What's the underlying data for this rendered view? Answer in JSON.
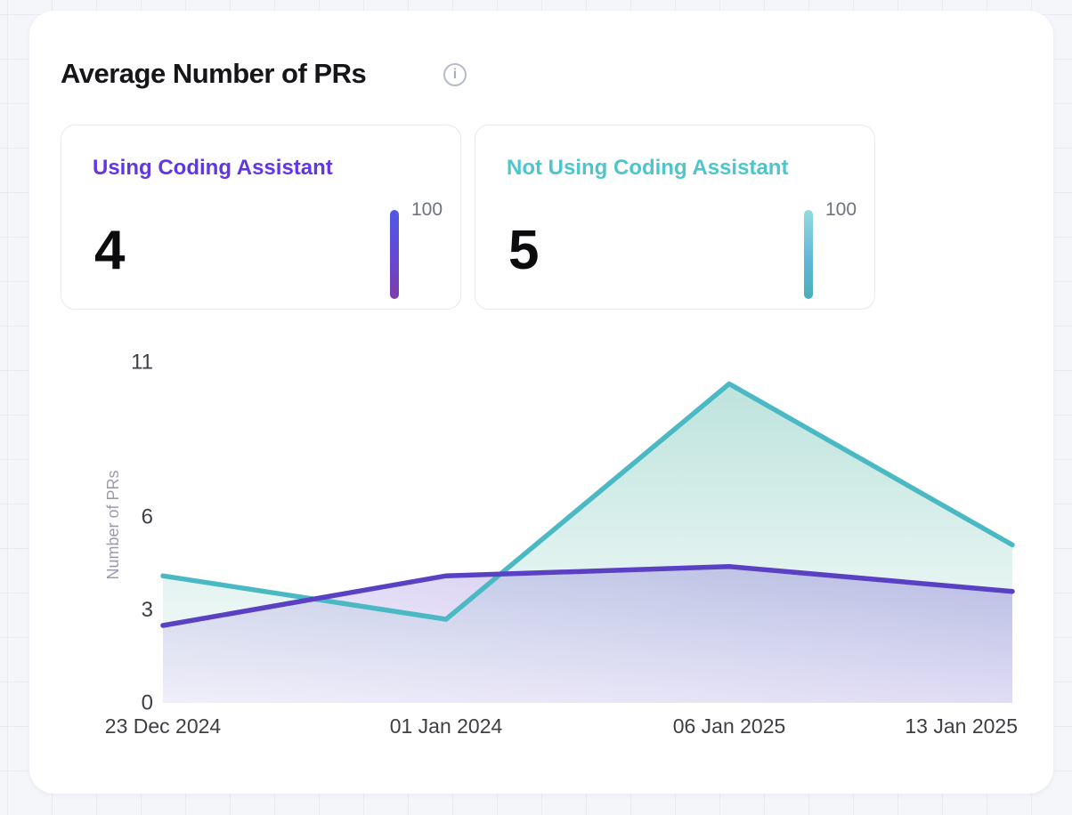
{
  "page": {
    "background": "#f5f6fa",
    "grid_line_color": "#ede9f2"
  },
  "header": {
    "title": "Average Number of PRs",
    "info_icon": "i"
  },
  "stat_cards": [
    {
      "label": "Using Coding Assistant",
      "value": "4",
      "scale_max": "100",
      "accent": "#6136e6",
      "bar_gradient": [
        "#4f5ae8",
        "#6647d2",
        "#7e3cab"
      ]
    },
    {
      "label": "Not Using Coding Assistant",
      "value": "5",
      "scale_max": "100",
      "accent": "#4ec5cc",
      "bar_gradient": [
        "#93dbe0",
        "#62b7d8",
        "#4aaebb"
      ]
    }
  ],
  "chart_data": {
    "type": "area",
    "x": [
      "23 Dec 2024",
      "01 Jan 2024",
      "06 Jan 2025",
      "13 Jan 2025"
    ],
    "series": [
      {
        "name": "Using Coding Assistant",
        "color": "#5a40c2",
        "values": [
          2.5,
          4.1,
          4.4,
          3.6
        ],
        "area_from": "rgba(160,132,226,0.12)",
        "area_to": "rgba(86,61,199,0.30)",
        "area_direction": "diagonal"
      },
      {
        "name": "Not Using Coding Assistant",
        "color": "#4bb9c4",
        "values": [
          4.1,
          2.7,
          10.3,
          5.1
        ],
        "area_from": "rgba(63,174,154,0.34)",
        "area_to": "rgba(63,174,154,0.02)",
        "area_direction": "vertical"
      }
    ],
    "title": "Average Number of PRs",
    "xlabel": "",
    "ylabel": "Number of PRs",
    "yticks": [
      0,
      3,
      6,
      11
    ],
    "ylim": [
      0,
      11.8
    ],
    "grid": false,
    "legend": "none",
    "axis_text_color": "#3e3e45",
    "ylabel_color": "#9b9ba8"
  }
}
